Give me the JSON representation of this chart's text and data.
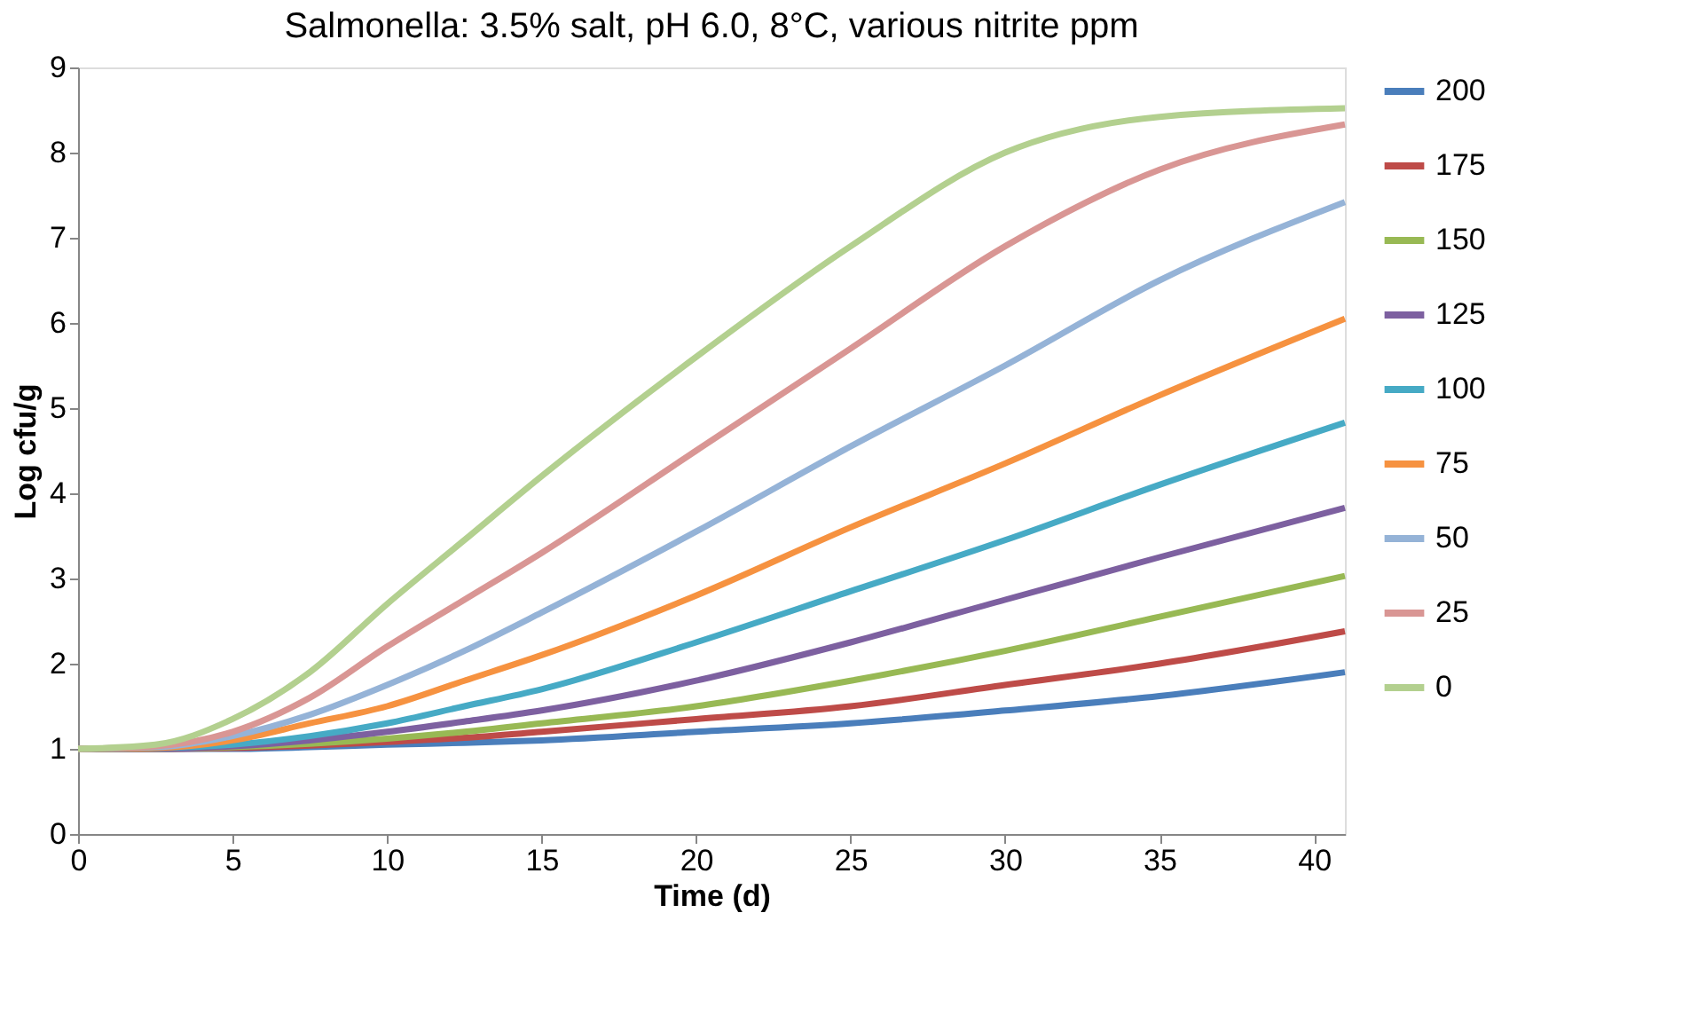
{
  "chart_data": {
    "type": "line",
    "title": "Salmonella: 3.5% salt, pH 6.0, 8°C, various nitrite ppm",
    "xlabel": "Time (d)",
    "ylabel": "Log cfu/g",
    "x": [
      0,
      2.5,
      5,
      7.5,
      10,
      12.5,
      15,
      20,
      25,
      30,
      35,
      41
    ],
    "series": [
      {
        "name": "200",
        "color": "#4a7ebb",
        "values": [
          1.0,
          1.0,
          1.0,
          1.02,
          1.05,
          1.07,
          1.1,
          1.2,
          1.3,
          1.45,
          1.62,
          1.9
        ]
      },
      {
        "name": "175",
        "color": "#be4b48",
        "values": [
          1.0,
          1.0,
          1.01,
          1.04,
          1.08,
          1.13,
          1.2,
          1.35,
          1.5,
          1.75,
          2.0,
          2.38
        ]
      },
      {
        "name": "150",
        "color": "#98b954",
        "values": [
          1.0,
          1.0,
          1.02,
          1.06,
          1.12,
          1.2,
          1.3,
          1.5,
          1.8,
          2.15,
          2.55,
          3.03
        ]
      },
      {
        "name": "125",
        "color": "#7d60a0",
        "values": [
          1.0,
          1.0,
          1.03,
          1.1,
          1.2,
          1.32,
          1.45,
          1.8,
          2.25,
          2.75,
          3.25,
          3.83
        ]
      },
      {
        "name": "100",
        "color": "#46aac5",
        "values": [
          1.0,
          1.01,
          1.05,
          1.15,
          1.3,
          1.5,
          1.7,
          2.25,
          2.85,
          3.45,
          4.1,
          4.83
        ]
      },
      {
        "name": "75",
        "color": "#f69240",
        "values": [
          1.0,
          1.01,
          1.1,
          1.3,
          1.5,
          1.8,
          2.1,
          2.8,
          3.6,
          4.35,
          5.15,
          6.05
        ]
      },
      {
        "name": "50",
        "color": "#95b3d7",
        "values": [
          1.0,
          1.02,
          1.15,
          1.4,
          1.75,
          2.15,
          2.6,
          3.55,
          4.55,
          5.5,
          6.5,
          7.42
        ]
      },
      {
        "name": "25",
        "color": "#d99694",
        "values": [
          1.0,
          1.03,
          1.2,
          1.6,
          2.2,
          2.75,
          3.3,
          4.5,
          5.7,
          6.9,
          7.8,
          8.33
        ]
      },
      {
        "name": "0",
        "color": "#b3d08f",
        "values": [
          1.0,
          1.05,
          1.35,
          1.9,
          2.7,
          3.45,
          4.2,
          5.6,
          6.9,
          8.0,
          8.42,
          8.52
        ]
      }
    ],
    "xlim": [
      0,
      41
    ],
    "xticks": [
      0,
      5,
      10,
      15,
      20,
      25,
      30,
      35,
      40
    ],
    "ylim": [
      0,
      9
    ],
    "yticks": [
      0,
      1,
      2,
      3,
      4,
      5,
      6,
      7,
      8,
      9
    ],
    "grid": false,
    "legend": "right",
    "marker": "none",
    "line_style": "solid"
  }
}
